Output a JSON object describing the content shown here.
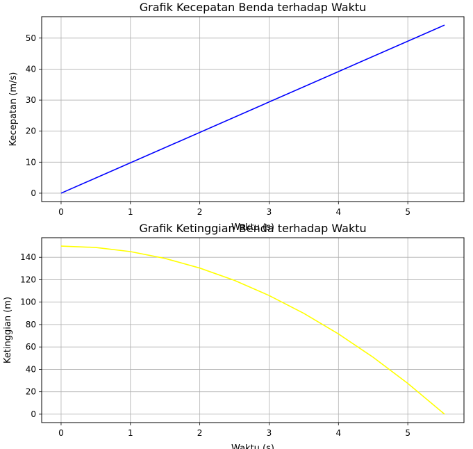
{
  "chart_data": [
    {
      "type": "line",
      "title": "Grafik Kecepatan Benda terhadap Waktu",
      "xlabel": "Waktu (s)",
      "ylabel": "Kecepatan (m/s)",
      "xlim": [
        -0.28,
        5.81
      ],
      "ylim": [
        -2.7,
        56.9
      ],
      "xticks": [
        0,
        1,
        2,
        3,
        4,
        5
      ],
      "yticks": [
        0,
        10,
        20,
        30,
        40,
        50
      ],
      "grid": true,
      "series": [
        {
          "color": "#0000ff",
          "x": [
            0,
            5.53
          ],
          "y": [
            0,
            54.2
          ]
        }
      ]
    },
    {
      "type": "line",
      "title": "Grafik Ketinggian Benda terhadap Waktu",
      "xlabel": "Waktu (s)",
      "ylabel": "Ketinggian (m)",
      "xlim": [
        -0.28,
        5.81
      ],
      "ylim": [
        -7.5,
        157.5
      ],
      "xticks": [
        0,
        1,
        2,
        3,
        4,
        5
      ],
      "yticks": [
        0,
        20,
        40,
        60,
        80,
        100,
        120,
        140
      ],
      "grid": true,
      "series": [
        {
          "color": "#ffff00",
          "x": [
            0,
            0.5,
            1,
            1.5,
            2,
            2.5,
            3,
            3.5,
            4,
            4.5,
            5,
            5.53
          ],
          "y": [
            150,
            148.8,
            145.1,
            139.0,
            130.4,
            119.4,
            105.9,
            90.0,
            71.6,
            50.8,
            27.5,
            0
          ]
        }
      ]
    }
  ]
}
